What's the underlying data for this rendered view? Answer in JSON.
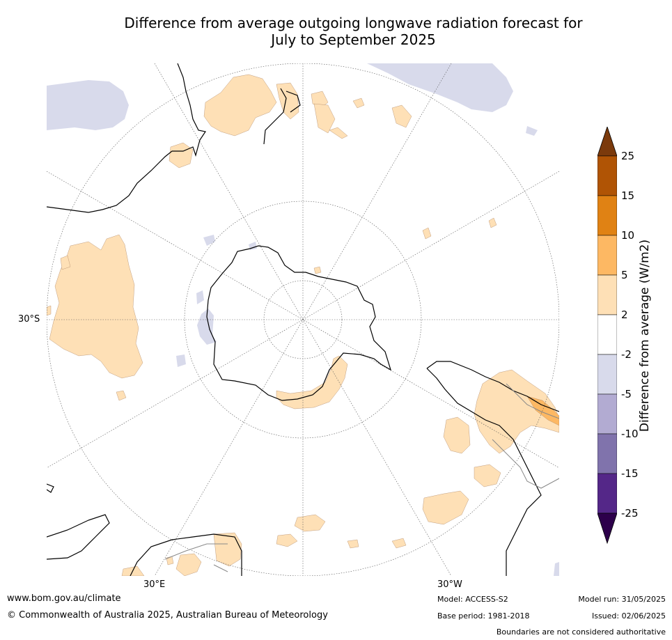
{
  "title_line1": "Difference from average outgoing longwave radiation forecast for",
  "title_line2": "July to September 2025",
  "map": {
    "projection": "south polar stereographic",
    "lat_labels": [
      "30°S"
    ],
    "lon_labels": [
      "30°E",
      "30°W"
    ]
  },
  "colorbar": {
    "label": "Difference from average (W/m2)",
    "ticks": [
      "25",
      "15",
      "10",
      "5",
      "2",
      "-2",
      "-5",
      "-10",
      "-15",
      "-25"
    ],
    "colors_top_to_bottom": [
      "#7b3a0c",
      "#b05405",
      "#e08214",
      "#fdb863",
      "#fee0b6",
      "#ffffff",
      "#d8daeb",
      "#b2abd2",
      "#8073ac",
      "#542788",
      "#2d004b"
    ]
  },
  "footer": {
    "url": "www.bom.gov.au/climate",
    "copyright": "© Commonwealth of Australia 2025, Australian Bureau of Meteorology",
    "model": "Model: ACCESS-S2",
    "base_period": "Base period: 1981-2018",
    "model_run": "Model run: 31/05/2025",
    "issued": "Issued: 02/06/2025",
    "disclaimer": "Boundaries are not considered authoritative"
  }
}
